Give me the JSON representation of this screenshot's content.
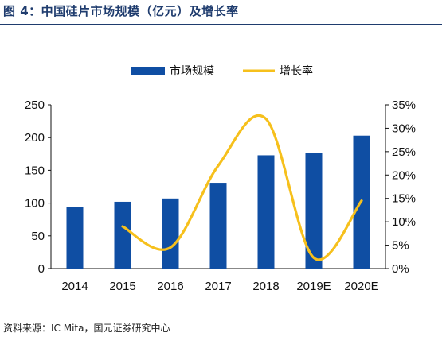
{
  "figure": {
    "title": "图 4：中国硅片市场规模（亿元）及增长率",
    "source": "资料来源：IC Mita，国元证券研究中心"
  },
  "colors": {
    "bar": "#0f4ea3",
    "line": "#f6c01c",
    "title": "#1f3c6e",
    "axis": "#111111"
  },
  "chart_data": {
    "type": "bar",
    "categories": [
      "2014",
      "2015",
      "2016",
      "2017",
      "2018",
      "2019E",
      "2020E"
    ],
    "series": [
      {
        "name": "市场规模",
        "type": "bar",
        "axis": "left",
        "values": [
          94,
          102,
          107,
          131,
          173,
          177,
          203
        ]
      },
      {
        "name": "增长率",
        "type": "line",
        "axis": "right",
        "values": [
          null,
          9.0,
          4.5,
          22.0,
          32.0,
          2.3,
          14.5
        ]
      }
    ],
    "y_left": {
      "min": 0,
      "max": 250,
      "step": 50,
      "tick_labels": [
        "0",
        "50",
        "100",
        "150",
        "200",
        "250"
      ]
    },
    "y_right": {
      "min": 0,
      "max": 35,
      "step": 5,
      "tick_labels": [
        "0%",
        "5%",
        "10%",
        "15%",
        "20%",
        "25%",
        "30%",
        "35%"
      ]
    },
    "legend": {
      "position": "top-center"
    },
    "grid": false
  }
}
